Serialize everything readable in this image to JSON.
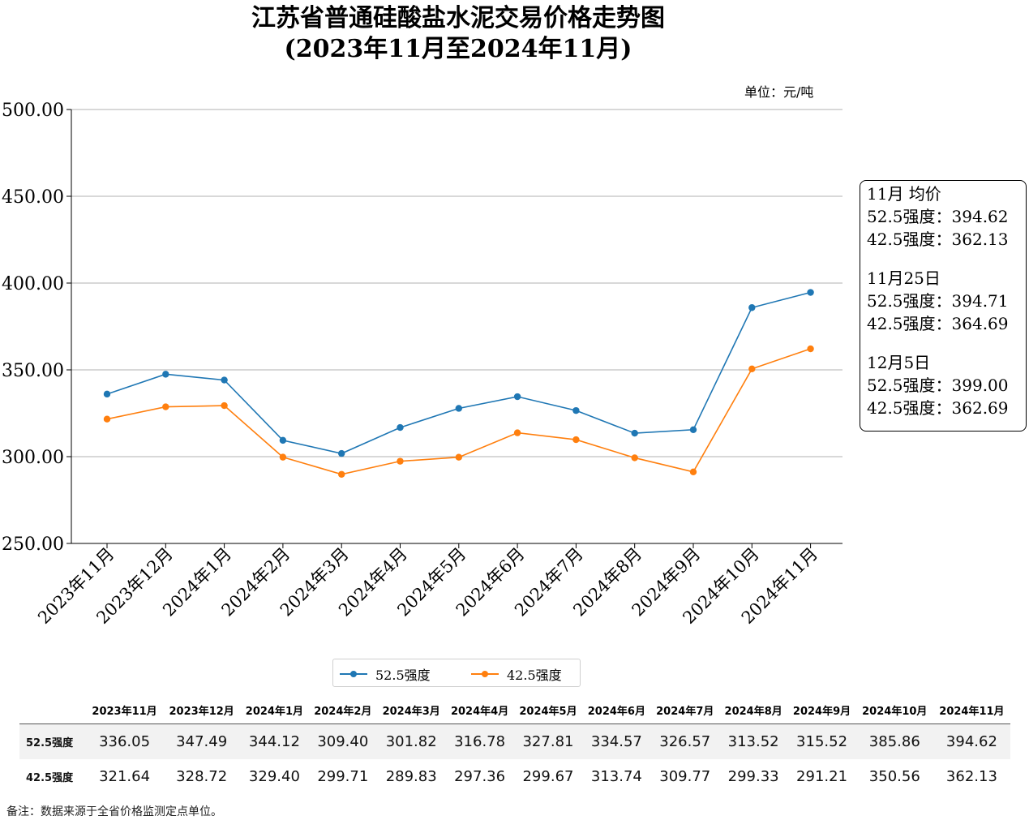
{
  "chart_data": {
    "type": "line",
    "title": "江苏省普通硅酸盐水泥交易价格走势图",
    "subtitle": "(2023年11月至2024年11月)",
    "unit_label": "单位：元/吨",
    "categories": [
      "2023年11月",
      "2023年12月",
      "2024年1月",
      "2024年2月",
      "2024年3月",
      "2024年4月",
      "2024年5月",
      "2024年6月",
      "2024年7月",
      "2024年8月",
      "2024年9月",
      "2024年10月",
      "2024年11月"
    ],
    "series": [
      {
        "name": "52.5强度",
        "color": "#1f77b4",
        "values": [
          336.05,
          347.49,
          344.12,
          309.4,
          301.82,
          316.78,
          327.81,
          334.57,
          326.57,
          313.52,
          315.52,
          385.86,
          394.62
        ]
      },
      {
        "name": "42.5强度",
        "color": "#ff7f0e",
        "values": [
          321.64,
          328.72,
          329.4,
          299.71,
          289.83,
          297.36,
          299.67,
          313.74,
          309.77,
          299.33,
          291.21,
          350.56,
          362.13
        ]
      }
    ],
    "yticks": [
      "250.00",
      "300.00",
      "350.00",
      "400.00",
      "450.00",
      "500.00"
    ],
    "ylim": [
      250,
      500
    ],
    "grid": "horizontal",
    "legend": "bottom-center"
  },
  "annotation": [
    {
      "heading": "11月 均价",
      "lines": [
        "52.5强度：394.62",
        "42.5强度：362.13"
      ]
    },
    {
      "heading": "11月25日",
      "lines": [
        "52.5强度：394.71",
        "42.5强度：364.69"
      ]
    },
    {
      "heading": "12月5日",
      "lines": [
        "52.5强度：399.00",
        "42.5强度：362.69"
      ]
    }
  ],
  "table": {
    "columns": [
      "2023年11月",
      "2023年12月",
      "2024年1月",
      "2024年2月",
      "2024年3月",
      "2024年4月",
      "2024年5月",
      "2024年6月",
      "2024年7月",
      "2024年8月",
      "2024年9月",
      "2024年10月",
      "2024年11月"
    ],
    "rows": [
      {
        "label": "52.5强度",
        "cells": [
          "336.05",
          "347.49",
          "344.12",
          "309.40",
          "301.82",
          "316.78",
          "327.81",
          "334.57",
          "326.57",
          "313.52",
          "315.52",
          "385.86",
          "394.62"
        ]
      },
      {
        "label": "42.5强度",
        "cells": [
          "321.64",
          "328.72",
          "329.40",
          "299.71",
          "289.83",
          "297.36",
          "299.67",
          "313.74",
          "309.77",
          "299.33",
          "291.21",
          "350.56",
          "362.13"
        ]
      }
    ]
  },
  "note": "备注：数据来源于全省价格监测定点单位。"
}
